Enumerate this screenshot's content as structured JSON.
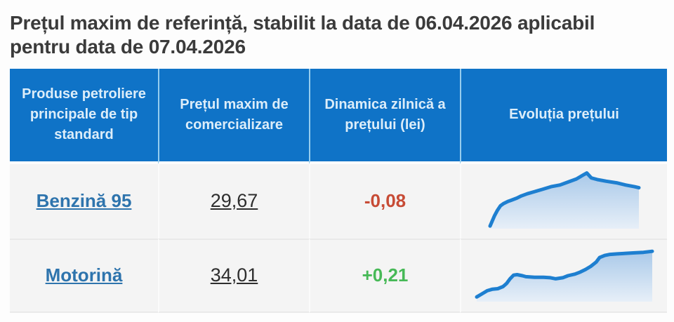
{
  "title": "Prețul maxim de referință, stabilit la data de 06.04.2026 aplicabil pentru data de 07.04.2026",
  "table": {
    "headers": [
      "Produse petroliere principale de tip standard",
      "Prețul maxim de comercializare",
      "Dinamica zilnică a prețului (lei)",
      "Evoluția prețului"
    ],
    "rows": [
      {
        "product": "Benzină 95",
        "price": "29,67",
        "change": "-0,08",
        "change_direction": "negative"
      },
      {
        "product": "Motorină",
        "price": "34,01",
        "change": "+0,21",
        "change_direction": "positive"
      }
    ]
  },
  "colors": {
    "title_text": "#3b3b3b",
    "header_bg": "#0f73c7",
    "header_text": "#dcedf9",
    "header_divider": "#96cdee",
    "row_bg": "#f4f4f4",
    "link": "#2e74ad",
    "price_text": "#2e2e2e",
    "negative": "#c74b35",
    "positive": "#47b957",
    "spark_line": "#1e7fd0",
    "spark_fill_top": "#a9c9e9",
    "spark_fill_bottom": "#e7eff8"
  },
  "chart_data": [
    {
      "type": "line",
      "title": "Evoluția prețului — Benzină 95",
      "xlabel": "",
      "ylabel": "",
      "x_range": [
        0,
        100
      ],
      "y_range": [
        0,
        100
      ],
      "grid": false,
      "legend": false,
      "points": [
        [
          0,
          1
        ],
        [
          3,
          20
        ],
        [
          5,
          30
        ],
        [
          7,
          38
        ],
        [
          9,
          42
        ],
        [
          12,
          46
        ],
        [
          14,
          48
        ],
        [
          18,
          52
        ],
        [
          21,
          56
        ],
        [
          25,
          60
        ],
        [
          30,
          64
        ],
        [
          35,
          68
        ],
        [
          41,
          73
        ],
        [
          47,
          76
        ],
        [
          53,
          82
        ],
        [
          58,
          87
        ],
        [
          63,
          95
        ],
        [
          65,
          98
        ],
        [
          68,
          89
        ],
        [
          72,
          86
        ],
        [
          78,
          83
        ],
        [
          85,
          80
        ],
        [
          91,
          76
        ],
        [
          97,
          73
        ],
        [
          100,
          71
        ]
      ]
    },
    {
      "type": "line",
      "title": "Evoluția prețului — Motorină",
      "xlabel": "",
      "ylabel": "",
      "x_range": [
        0,
        100
      ],
      "y_range": [
        0,
        100
      ],
      "grid": false,
      "legend": false,
      "points": [
        [
          0,
          5
        ],
        [
          3,
          11
        ],
        [
          6,
          17
        ],
        [
          9,
          20
        ],
        [
          12,
          21
        ],
        [
          15,
          25
        ],
        [
          17,
          31
        ],
        [
          19,
          40
        ],
        [
          21,
          47
        ],
        [
          23,
          48
        ],
        [
          26,
          46
        ],
        [
          28,
          44
        ],
        [
          33,
          43
        ],
        [
          38,
          43
        ],
        [
          42,
          42
        ],
        [
          45,
          40
        ],
        [
          49,
          42
        ],
        [
          52,
          46
        ],
        [
          56,
          49
        ],
        [
          59,
          53
        ],
        [
          62,
          58
        ],
        [
          65,
          64
        ],
        [
          68,
          72
        ],
        [
          70,
          81
        ],
        [
          73,
          85
        ],
        [
          76,
          87
        ],
        [
          80,
          88
        ],
        [
          85,
          89
        ],
        [
          90,
          90
        ],
        [
          95,
          91
        ],
        [
          100,
          93
        ]
      ]
    }
  ]
}
